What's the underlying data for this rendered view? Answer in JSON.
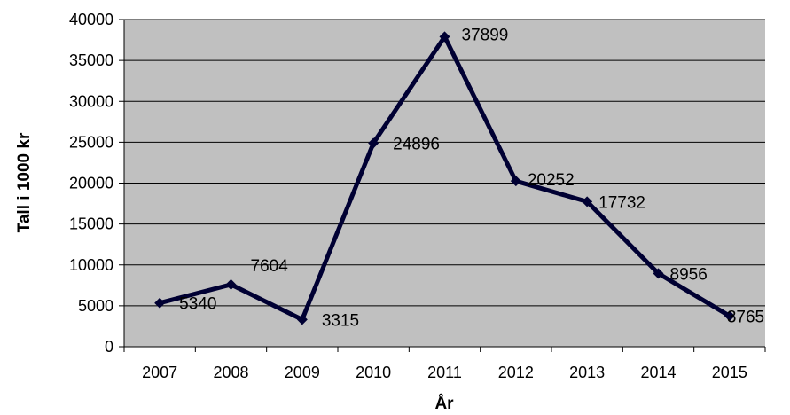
{
  "chart_data": {
    "type": "line",
    "xlabel": "År",
    "ylabel": "Tall i 1000 kr",
    "categories": [
      "2007",
      "2008",
      "2009",
      "2010",
      "2011",
      "2012",
      "2013",
      "2014",
      "2015"
    ],
    "series": [
      {
        "values": [
          5340,
          7604,
          3315,
          24896,
          37899,
          20252,
          17732,
          8956,
          3765
        ]
      }
    ],
    "data_labels": [
      "5340",
      "7604",
      "3315",
      "24896",
      "37899",
      "20252",
      "17732",
      "8956",
      "3765"
    ],
    "ylim": [
      0,
      40000
    ],
    "yticks": [
      "0",
      "5000",
      "10000",
      "15000",
      "20000",
      "25000",
      "30000",
      "35000",
      "40000"
    ],
    "grid": true,
    "legend": "none",
    "colors": {
      "plot_background": "#c0c0c0",
      "line": "#000033",
      "gridline": "#000000"
    }
  }
}
